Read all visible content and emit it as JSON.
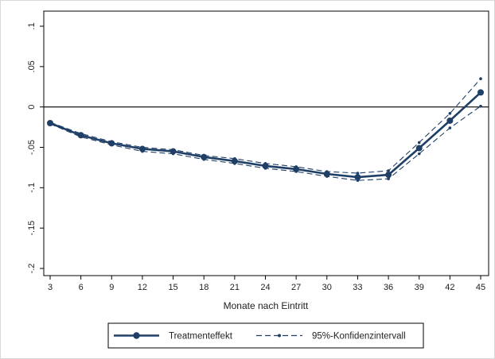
{
  "chart_data": {
    "type": "line",
    "xlabel": "Monate nach Eintritt",
    "ylabel": "",
    "x": [
      3,
      6,
      9,
      12,
      15,
      18,
      21,
      24,
      27,
      30,
      33,
      36,
      39,
      42,
      45
    ],
    "xticks": [
      "3",
      "6",
      "9",
      "12",
      "15",
      "18",
      "21",
      "24",
      "27",
      "30",
      "33",
      "36",
      "39",
      "42",
      "45"
    ],
    "yticks": [
      {
        "value": 0.1,
        "label": ".1"
      },
      {
        "value": 0.05,
        "label": ".05"
      },
      {
        "value": 0,
        "label": "0"
      },
      {
        "value": -0.05,
        "label": "-.05"
      },
      {
        "value": -0.1,
        "label": "-.1"
      },
      {
        "value": -0.15,
        "label": "-.15"
      },
      {
        "value": -0.2,
        "label": "-.2"
      }
    ],
    "ylim": [
      -0.2,
      0.1
    ],
    "reference_line": 0,
    "grid": false,
    "legend_position": "bottom",
    "series": [
      {
        "name": "Treatmenteffekt",
        "style": "solid-with-markers",
        "color": "#1f3f66",
        "values": [
          -0.02,
          -0.035,
          -0.045,
          -0.052,
          -0.055,
          -0.062,
          -0.067,
          -0.073,
          -0.077,
          -0.083,
          -0.087,
          -0.084,
          -0.051,
          -0.017,
          0.018
        ]
      },
      {
        "name": "95%-Konfidenzintervall",
        "style": "dashed-with-small-markers",
        "color": "#1f3f66",
        "upper": [
          -0.019,
          -0.033,
          -0.043,
          -0.05,
          -0.053,
          -0.06,
          -0.064,
          -0.07,
          -0.074,
          -0.08,
          -0.082,
          -0.079,
          -0.044,
          -0.008,
          0.035
        ],
        "lower": [
          -0.021,
          -0.037,
          -0.047,
          -0.055,
          -0.058,
          -0.065,
          -0.07,
          -0.076,
          -0.08,
          -0.086,
          -0.091,
          -0.089,
          -0.058,
          -0.026,
          0.001
        ]
      }
    ]
  },
  "legend": {
    "entries": [
      "Treatmenteffekt",
      "95%-Konfidenzintervall"
    ]
  },
  "colors": {
    "line": "#1f3f66",
    "axis": "#000000",
    "frame": "#000000"
  }
}
